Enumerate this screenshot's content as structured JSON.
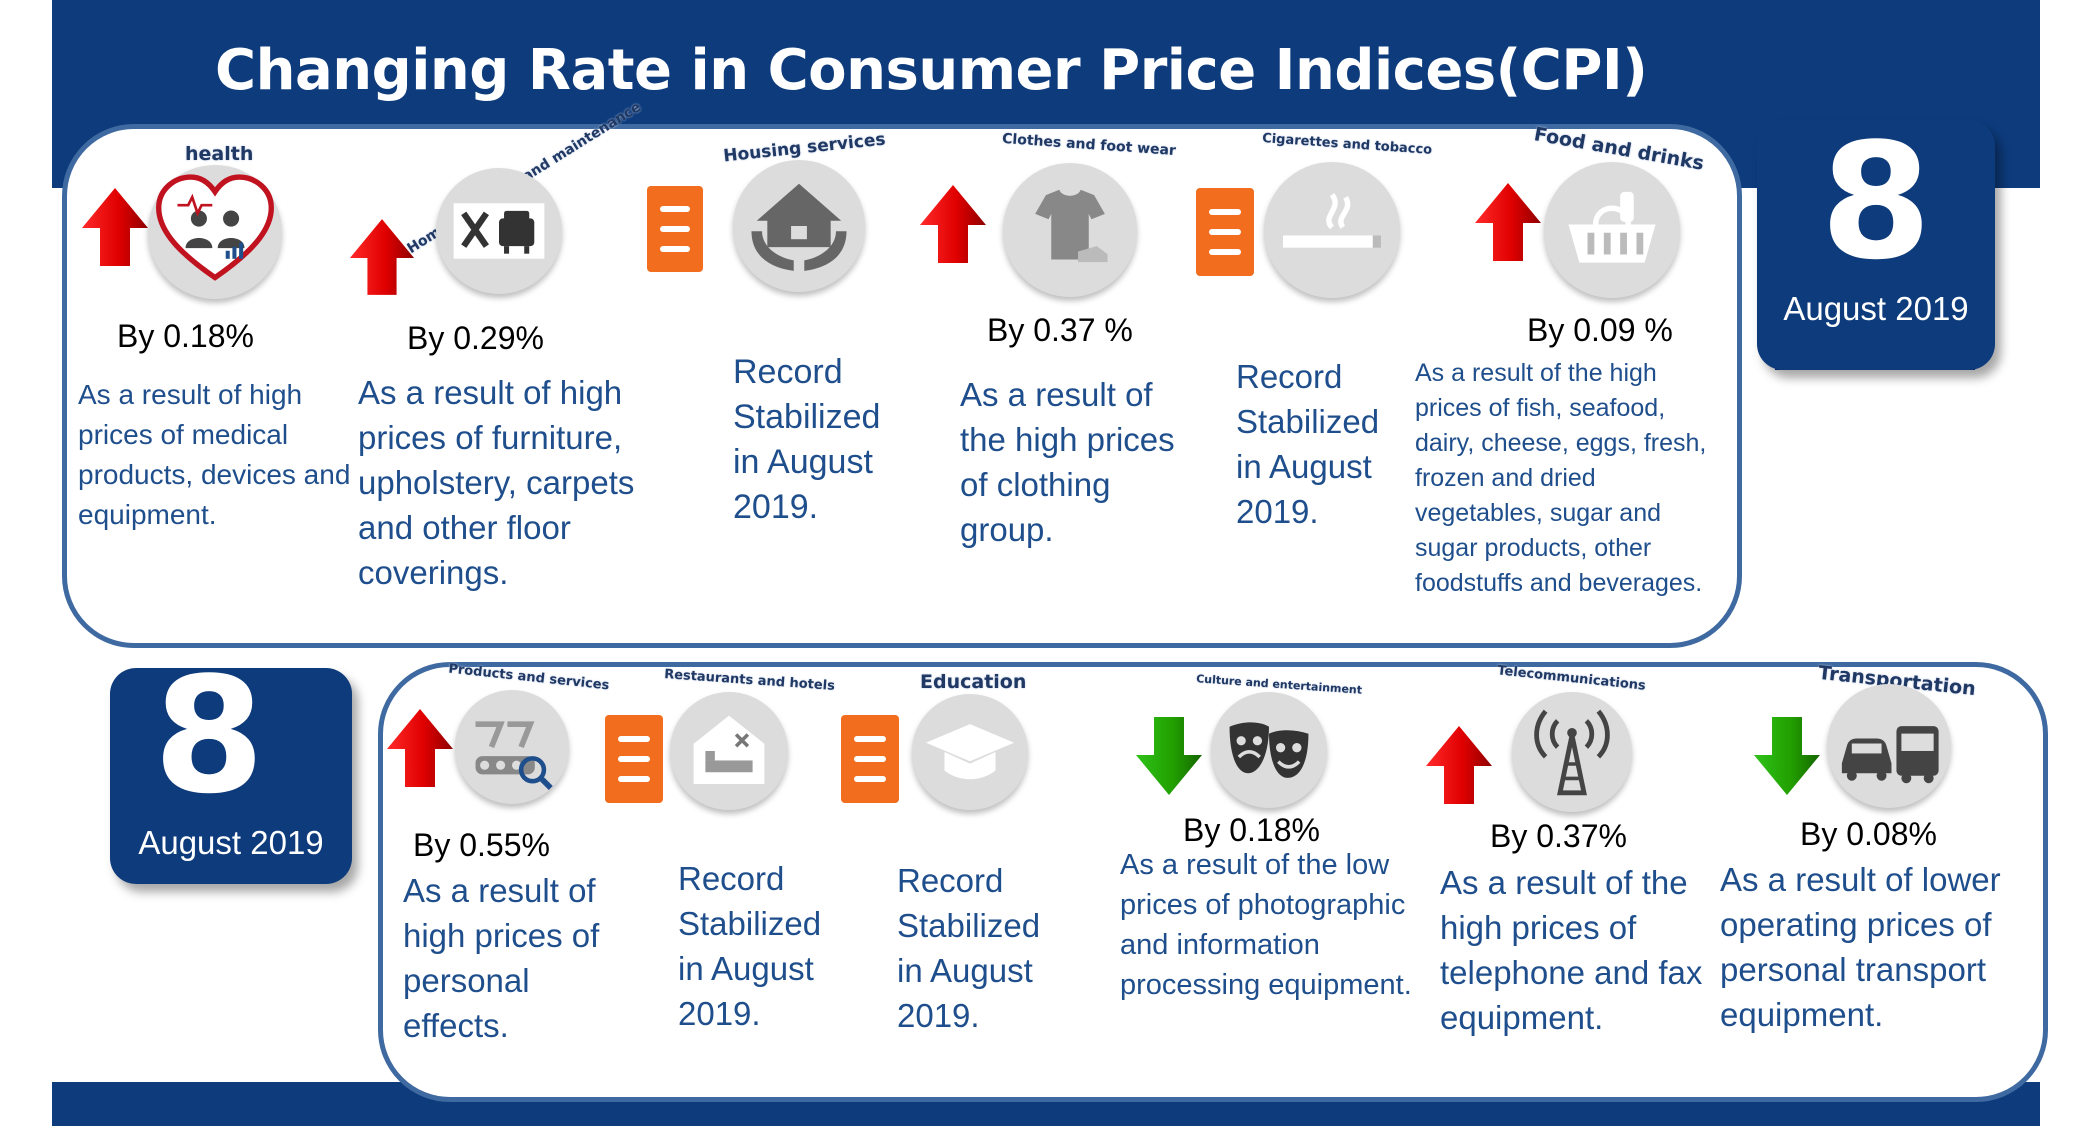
{
  "title": "Changing Rate in Consumer Price Indices(CPI)",
  "colors": {
    "navy": "#0d3b7c",
    "panel_border": "#3f6aa1",
    "up_arrow": "#e00000",
    "down_arrow": "#22a000",
    "stable": "#f26d1d",
    "desc_text": "#1f4e8c"
  },
  "date_top": {
    "day": "8",
    "month": "August 2019"
  },
  "date_bottom": {
    "day": "8",
    "month": "August 2019"
  },
  "row1": [
    {
      "category": "health",
      "icon": "heart-people-icon",
      "trend": "up",
      "change": "By 0.18%",
      "description": "As a result of high prices of medical products, devices and equipment."
    },
    {
      "category": "Home furnishing and maintenance",
      "icon": "furniture-tools-icon",
      "trend": "up",
      "change": "By 0.29%",
      "description": "As a result of high prices of furniture, upholstery, carpets and other floor coverings."
    },
    {
      "category": "Housing services",
      "icon": "house-hands-icon",
      "trend": "stable",
      "change": "",
      "description": "Record Stabilized in August 2019."
    },
    {
      "category": "Clothes and foot wear",
      "icon": "tshirt-shoe-icon",
      "trend": "up",
      "change": "By 0.37 %",
      "description": "As a result of the high prices of clothing group."
    },
    {
      "category": "Cigarettes and tobacco",
      "icon": "cigarette-icon",
      "trend": "stable",
      "change": "",
      "description": "Record Stabilized in August 2019."
    },
    {
      "category": "Food and drinks",
      "icon": "food-basket-icon",
      "trend": "up",
      "change": "By 0.09 %",
      "description": "As a result of the high prices of fish, seafood, dairy, cheese, eggs, fresh, frozen and dried vegetables, sugar and sugar products, other foodstuffs and beverages."
    }
  ],
  "row2": [
    {
      "category": "Products and services",
      "icon": "factory-search-icon",
      "trend": "up",
      "change": "By 0.55%",
      "description": "As a result of high prices of personal effects."
    },
    {
      "category": "Restaurants and hotels",
      "icon": "hotel-bed-icon",
      "trend": "stable",
      "change": "",
      "description": "Record Stabilized in August 2019."
    },
    {
      "category": "Education",
      "icon": "graduation-cap-icon",
      "trend": "stable",
      "change": "",
      "description": "Record Stabilized in August 2019."
    },
    {
      "category": "Culture and entertainment",
      "icon": "theater-masks-icon",
      "trend": "down",
      "change": "By 0.18%",
      "description": "As a result of the low prices of photographic and information processing equipment."
    },
    {
      "category": "Telecommunications",
      "icon": "antenna-tower-icon",
      "trend": "up",
      "change": "By 0.37%",
      "description": "As a result of the high prices of telephone and fax equipment."
    },
    {
      "category": "Transportation",
      "icon": "car-bus-icon",
      "trend": "down",
      "change": "By 0.08%",
      "description": "As a result of lower operating prices of personal transport equipment."
    }
  ]
}
